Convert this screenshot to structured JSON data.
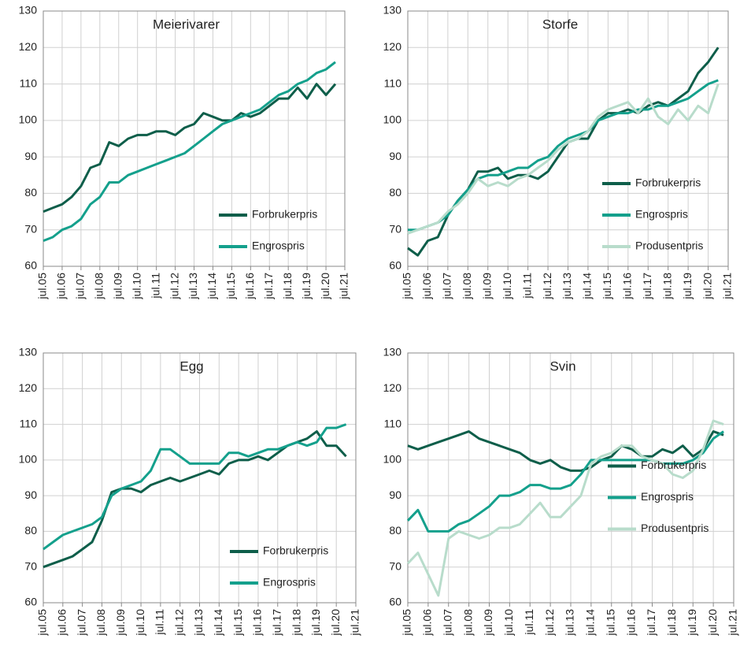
{
  "chart_data": [
    {
      "type": "line",
      "title": "Meierivarer",
      "legend": "lower right",
      "grid": true,
      "categories": [
        "jul.05",
        null,
        "jul.06",
        null,
        "jul.07",
        null,
        "jul.08",
        null,
        "jul.09",
        null,
        "jul.10",
        null,
        "jul.11",
        null,
        "jul.12",
        null,
        "jul.13",
        null,
        "jul.14",
        null,
        "jul.15",
        null,
        "jul.16",
        null,
        "jul.17",
        null,
        "jul.18",
        null,
        "jul.19",
        null,
        "jul.20",
        null,
        "jul.21"
      ],
      "ylim": [
        60,
        130
      ],
      "yticks": [
        60,
        70,
        80,
        90,
        100,
        110,
        120,
        130
      ],
      "series": [
        {
          "name": "Forbrukerpris",
          "color": "#0e5e4a",
          "values": [
            75,
            76,
            77,
            79,
            82,
            87,
            88,
            94,
            93,
            95,
            96,
            96,
            97,
            97,
            96,
            98,
            99,
            102,
            101,
            100,
            100,
            102,
            101,
            102,
            104,
            106,
            106,
            109,
            106,
            110,
            107,
            110,
            null
          ]
        },
        {
          "name": "Engrospris",
          "color": "#14a08c",
          "values": [
            67,
            68,
            70,
            71,
            73,
            77,
            79,
            83,
            83,
            85,
            86,
            87,
            88,
            89,
            90,
            91,
            93,
            95,
            97,
            99,
            100,
            101,
            102,
            103,
            105,
            107,
            108,
            110,
            111,
            113,
            114,
            116,
            null
          ]
        }
      ]
    },
    {
      "type": "line",
      "title": "Storfe",
      "legend": "lower right",
      "grid": true,
      "categories": [
        "jul.05",
        null,
        "jul.06",
        null,
        "jul.07",
        null,
        "jul.08",
        null,
        "jul.09",
        null,
        "jul.10",
        null,
        "jul.11",
        null,
        "jul.12",
        null,
        "jul.13",
        null,
        "jul.14",
        null,
        "jul.15",
        null,
        "jul.16",
        null,
        "jul.17",
        null,
        "jul.18",
        null,
        "jul.19",
        null,
        "jul.20",
        null,
        "jul.21"
      ],
      "ylim": [
        60,
        130
      ],
      "yticks": [
        60,
        70,
        80,
        90,
        100,
        110,
        120,
        130
      ],
      "series": [
        {
          "name": "Forbrukerpris",
          "color": "#0e5e4a",
          "values": [
            65,
            63,
            67,
            68,
            74,
            78,
            81,
            86,
            86,
            87,
            84,
            85,
            85,
            84,
            86,
            90,
            94,
            95,
            95,
            100,
            102,
            102,
            103,
            102,
            104,
            105,
            104,
            106,
            108,
            113,
            116,
            120,
            null
          ]
        },
        {
          "name": "Engrospris",
          "color": "#14a08c",
          "values": [
            70,
            70,
            71,
            72,
            74,
            78,
            81,
            84,
            85,
            85,
            86,
            87,
            87,
            89,
            90,
            93,
            95,
            96,
            97,
            100,
            101,
            102,
            102,
            103,
            103,
            104,
            104,
            105,
            106,
            108,
            110,
            111,
            null
          ]
        },
        {
          "name": "Produsentpris",
          "color": "#b8dccb",
          "values": [
            69,
            70,
            71,
            72,
            75,
            77,
            80,
            84,
            82,
            83,
            82,
            84,
            85,
            87,
            89,
            92,
            94,
            95,
            97,
            101,
            103,
            104,
            105,
            102,
            106,
            101,
            99,
            103,
            100,
            104,
            102,
            110,
            null
          ]
        }
      ]
    },
    {
      "type": "line",
      "title": "Egg",
      "legend": "lower right",
      "grid": true,
      "categories": [
        "jul.05",
        null,
        "jul.06",
        null,
        "jul.07",
        null,
        "jul.08",
        null,
        "jul.09",
        null,
        "jul.10",
        null,
        "jul.11",
        null,
        "jul.12",
        null,
        "jul.13",
        null,
        "jul.14",
        null,
        "jul.15",
        null,
        "jul.16",
        null,
        "jul.17",
        null,
        "jul.18",
        null,
        "jul.19",
        null,
        "jul.20",
        null,
        "jul.21"
      ],
      "ylim": [
        60,
        130
      ],
      "yticks": [
        60,
        70,
        80,
        90,
        100,
        110,
        120,
        130
      ],
      "series": [
        {
          "name": "Forbrukerpris",
          "color": "#0e5e4a",
          "values": [
            70,
            71,
            72,
            73,
            75,
            77,
            83,
            91,
            92,
            92,
            91,
            93,
            94,
            95,
            94,
            95,
            96,
            97,
            96,
            99,
            100,
            100,
            101,
            100,
            102,
            104,
            105,
            106,
            108,
            104,
            104,
            101,
            null
          ]
        },
        {
          "name": "Engrospris",
          "color": "#14a08c",
          "values": [
            75,
            77,
            79,
            80,
            81,
            82,
            84,
            90,
            92,
            93,
            94,
            97,
            103,
            103,
            101,
            99,
            99,
            99,
            99,
            102,
            102,
            101,
            102,
            103,
            103,
            104,
            105,
            104,
            105,
            109,
            109,
            110,
            null
          ]
        }
      ]
    },
    {
      "type": "line",
      "title": "Svin",
      "legend": "center right",
      "grid": true,
      "categories": [
        "jul.05",
        null,
        "jul.06",
        null,
        "jul.07",
        null,
        "jul.08",
        null,
        "jul.09",
        null,
        "jul.10",
        null,
        "jul.11",
        null,
        "jul.12",
        null,
        "jul.13",
        null,
        "jul.14",
        null,
        "jul.15",
        null,
        "jul.16",
        null,
        "jul.17",
        null,
        "jul.18",
        null,
        "jul.19",
        null,
        "jul.20",
        null,
        "jul.21"
      ],
      "ylim": [
        60,
        130
      ],
      "yticks": [
        60,
        70,
        80,
        90,
        100,
        110,
        120,
        130
      ],
      "series": [
        {
          "name": "Forbrukerpris",
          "color": "#0e5e4a",
          "values": [
            104,
            103,
            104,
            105,
            106,
            107,
            108,
            106,
            105,
            104,
            103,
            102,
            100,
            99,
            100,
            98,
            97,
            97,
            98,
            100,
            101,
            104,
            103,
            101,
            101,
            103,
            102,
            104,
            101,
            103,
            108,
            107,
            null
          ]
        },
        {
          "name": "Engrospris",
          "color": "#14a08c",
          "values": [
            83,
            86,
            80,
            80,
            80,
            82,
            83,
            85,
            87,
            90,
            90,
            91,
            93,
            93,
            92,
            92,
            93,
            96,
            100,
            100,
            100,
            100,
            100,
            100,
            100,
            99,
            99,
            99,
            100,
            102,
            106,
            108,
            null
          ]
        },
        {
          "name": "Produsentpris",
          "color": "#b8dccb",
          "values": [
            71,
            74,
            68,
            62,
            78,
            80,
            79,
            78,
            79,
            81,
            81,
            82,
            85,
            88,
            84,
            84,
            87,
            90,
            99,
            101,
            102,
            104,
            104,
            101,
            100,
            99,
            96,
            95,
            97,
            103,
            111,
            110,
            null
          ]
        }
      ]
    }
  ]
}
